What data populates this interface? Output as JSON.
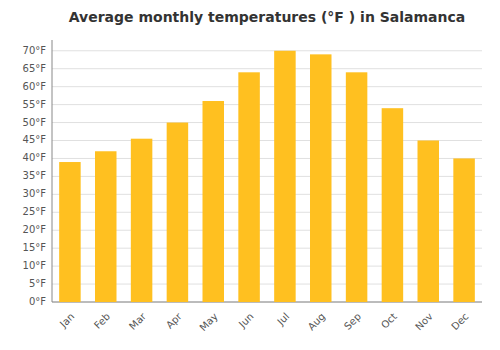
{
  "chart_data": {
    "type": "bar",
    "title": "Average monthly temperatures (°F ) in Salamanca",
    "categories": [
      "Jan",
      "Feb",
      "Mar",
      "Apr",
      "May",
      "Jun",
      "Jul",
      "Aug",
      "Sep",
      "Oct",
      "Nov",
      "Dec"
    ],
    "values": [
      39,
      42,
      45.5,
      50,
      56,
      64,
      70,
      69,
      64,
      54,
      45,
      40
    ],
    "color": "#FFC020",
    "ylim": [
      0,
      73
    ],
    "yticks": [
      {
        "value": 0,
        "label": "0°F"
      },
      {
        "value": 5,
        "label": "5°F"
      },
      {
        "value": 10,
        "label": "10°F"
      },
      {
        "value": 15,
        "label": "15°F"
      },
      {
        "value": 20,
        "label": "20°F"
      },
      {
        "value": 25,
        "label": "25°F"
      },
      {
        "value": 30,
        "label": "30°F"
      },
      {
        "value": 35,
        "label": "35°F"
      },
      {
        "value": 40,
        "label": "40°F"
      },
      {
        "value": 45,
        "label": "45°F"
      },
      {
        "value": 50,
        "label": "50°F"
      },
      {
        "value": 55,
        "label": "55°F"
      },
      {
        "value": 60,
        "label": "60°F"
      },
      {
        "value": 65,
        "label": "65°F"
      },
      {
        "value": 70,
        "label": "70°F"
      }
    ],
    "grid": true
  }
}
